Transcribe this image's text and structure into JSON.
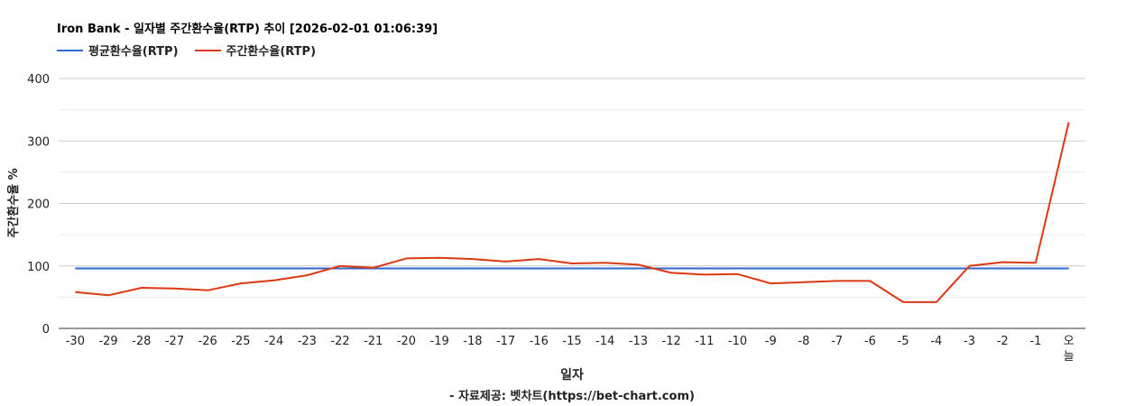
{
  "chart_data": {
    "type": "line",
    "title": "Iron Bank - 일자별 주간환수율(RTP) 추이 [2026-02-01 01:06:39]",
    "xlabel": "일자",
    "ylabel": "주간환수율 %",
    "source": "- 자료제공: 벳차트(https://bet-chart.com)",
    "categories": [
      "-30",
      "-29",
      "-28",
      "-27",
      "-26",
      "-25",
      "-24",
      "-23",
      "-22",
      "-21",
      "-20",
      "-19",
      "-18",
      "-17",
      "-16",
      "-15",
      "-14",
      "-13",
      "-12",
      "-11",
      "-10",
      "-9",
      "-8",
      "-7",
      "-6",
      "-5",
      "-4",
      "-3",
      "-2",
      "-1",
      "오늘"
    ],
    "series": [
      {
        "name": "평균환수율(RTP)",
        "color": "#3366cc",
        "values": [
          96,
          96,
          96,
          96,
          96,
          96,
          96,
          96,
          96,
          96,
          96,
          96,
          96,
          96,
          96,
          96,
          96,
          96,
          96,
          96,
          96,
          96,
          96,
          96,
          96,
          96,
          96,
          96,
          96,
          96,
          96
        ]
      },
      {
        "name": "주간환수율(RTP)",
        "color": "#dc3912",
        "values": [
          58,
          53,
          65,
          64,
          61,
          72,
          77,
          85,
          100,
          97,
          112,
          113,
          111,
          107,
          111,
          104,
          105,
          102,
          89,
          86,
          87,
          72,
          74,
          76,
          76,
          42,
          42,
          100,
          106,
          105,
          330
        ]
      }
    ],
    "ylim": [
      0,
      400
    ],
    "yticks": [
      0,
      100,
      200,
      300,
      400
    ],
    "grid": true,
    "legend": "top-left"
  }
}
